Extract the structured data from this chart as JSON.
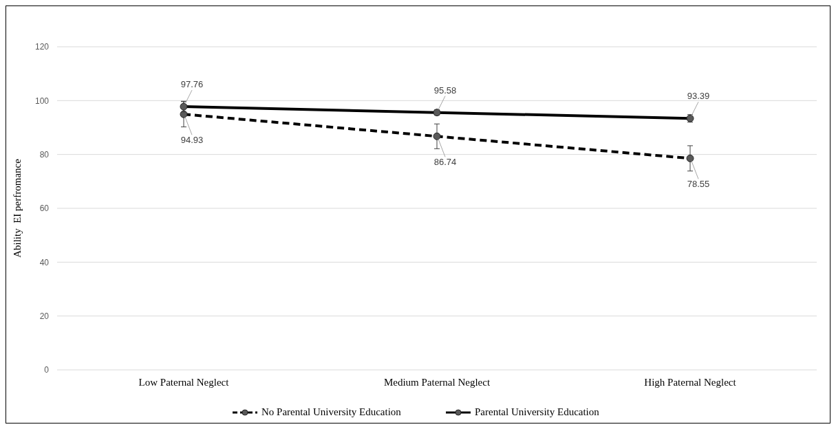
{
  "chart_data": {
    "type": "line",
    "ylabel": "Ability  EI perfromance",
    "categories": [
      "Low Paternal Neglect",
      "Medium Paternal Neglect",
      "High Paternal Neglect"
    ],
    "series": [
      {
        "name": "No Parental University Education",
        "color": "#000000",
        "line_style": "dashed",
        "values": [
          94.93,
          86.74,
          78.55
        ],
        "errors": [
          4.7,
          4.6,
          4.7
        ]
      },
      {
        "name": "Parental University Education",
        "color": "#000000",
        "line_style": "solid",
        "values": [
          97.76,
          95.58,
          93.39
        ],
        "errors": [
          2,
          1,
          1.4
        ]
      }
    ],
    "data_labels": true,
    "marker": "circle",
    "ylim": [
      0,
      120
    ],
    "yticks": [
      0,
      20,
      40,
      60,
      80,
      100,
      120
    ],
    "grid": "y",
    "legend": "bottom"
  }
}
